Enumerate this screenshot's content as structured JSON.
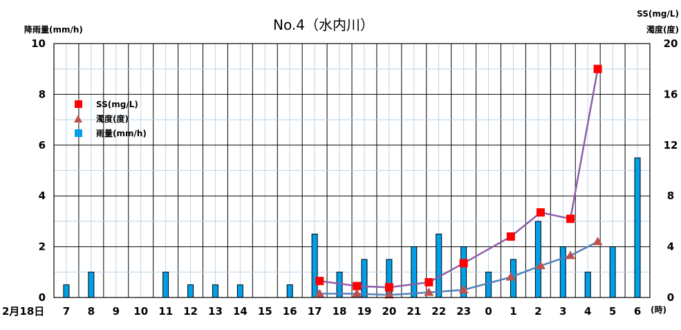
{
  "chart_data": {
    "type": "bar",
    "title": "No.4（水内川）",
    "ylabel_left": "降雨量(mm/h)",
    "ylabel_right_1": "SS(mg/L)",
    "ylabel_right_2": "濁度(度)",
    "x_unit_label": "(時)",
    "date_label": "2月18日",
    "categories": [
      "7",
      "8",
      "9",
      "10",
      "11",
      "12",
      "13",
      "14",
      "15",
      "16",
      "17",
      "18",
      "19",
      "20",
      "21",
      "22",
      "23",
      "0",
      "1",
      "2",
      "3",
      "4",
      "5",
      "6"
    ],
    "y_left_ticks": [
      "0",
      "2",
      "4",
      "6",
      "8",
      "10"
    ],
    "y_right_ticks": [
      "0",
      "4",
      "8",
      "12",
      "16",
      "20"
    ],
    "ylim_left": [
      0,
      10
    ],
    "ylim_right": [
      0,
      20
    ],
    "grid": true,
    "legend_position": "upper-left",
    "series": [
      {
        "name": "雨量(mm/h)",
        "kind": "bar",
        "axis": "left",
        "color": "#00a0e9",
        "x": [
          7,
          8,
          11,
          12,
          13,
          14,
          16,
          17,
          18,
          19,
          20,
          21,
          22,
          23,
          24,
          25,
          26,
          27,
          28,
          29,
          30
        ],
        "values": [
          0.5,
          1,
          1,
          0.5,
          0.5,
          0.5,
          0.5,
          2.5,
          1,
          1.5,
          1.5,
          2,
          2.5,
          2,
          1,
          1.5,
          3,
          2,
          1,
          2,
          5.5
        ]
      },
      {
        "name": "SS(mg/L)",
        "kind": "line-marker",
        "marker": "square",
        "axis": "right",
        "color": "#ff0000",
        "line_color": "#8b5ea9",
        "x": [
          17.2,
          18.7,
          20.0,
          21.6,
          23.0,
          24.9,
          26.1,
          27.3,
          28.4
        ],
        "values": [
          1.3,
          0.9,
          0.8,
          1.2,
          2.7,
          4.8,
          6.7,
          6.2,
          18.0
        ]
      },
      {
        "name": "濁度(度)",
        "kind": "line-marker",
        "marker": "triangle",
        "axis": "right",
        "color": "#c0504d",
        "line_color": "#4f81bd",
        "x": [
          17.2,
          18.7,
          20.0,
          21.6,
          23.0,
          24.9,
          26.1,
          27.3,
          28.4
        ],
        "values": [
          0.3,
          0.3,
          0.2,
          0.4,
          0.6,
          1.6,
          2.5,
          3.3,
          4.4
        ]
      }
    ]
  }
}
